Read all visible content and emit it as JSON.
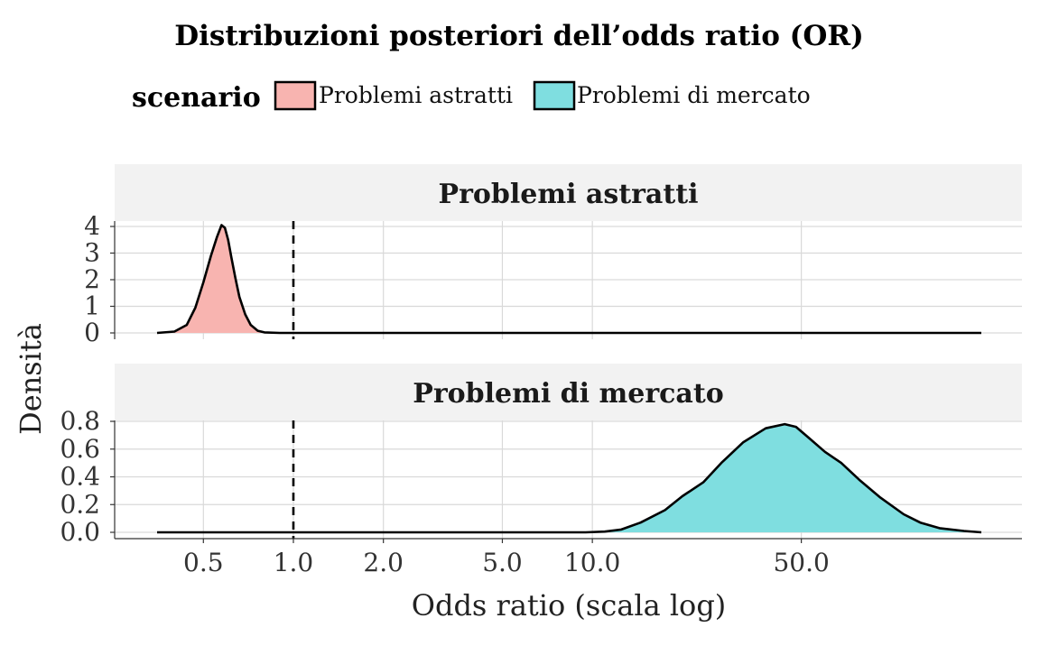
{
  "chart_data": {
    "type": "area",
    "title": "Distribuzioni posteriori dell’odds ratio (OR)",
    "xlabel": "Odds ratio (scala log)",
    "ylabel": "Densità",
    "x_scale": "log",
    "xlim": [
      0.35,
      200
    ],
    "x_ticks": [
      {
        "value": 0.5,
        "label": "0.5"
      },
      {
        "value": 1.0,
        "label": "1.0"
      },
      {
        "value": 2.0,
        "label": "2.0"
      },
      {
        "value": 5.0,
        "label": "5.0"
      },
      {
        "value": 10.0,
        "label": "10.0"
      },
      {
        "value": 50.0,
        "label": "50.0"
      }
    ],
    "reference_line": {
      "x": 1.0,
      "style": "dashed"
    },
    "grid": true,
    "legend": {
      "title": "scenario",
      "position": "top",
      "entries": [
        {
          "label": "Problemi astratti",
          "color": "#F8B4B0"
        },
        {
          "label": "Problemi di mercato",
          "color": "#7FDEE0"
        }
      ]
    },
    "panels": [
      {
        "strip_label": "Problemi astratti",
        "fill_color": "#F8B4B0",
        "ylim": [
          0,
          4.2
        ],
        "y_ticks": [
          {
            "value": 0,
            "label": "0"
          },
          {
            "value": 1,
            "label": "1"
          },
          {
            "value": 2,
            "label": "2"
          },
          {
            "value": 3,
            "label": "3"
          },
          {
            "value": 4,
            "label": "4"
          }
        ],
        "x": [
          0.35,
          0.4,
          0.44,
          0.47,
          0.5,
          0.53,
          0.555,
          0.575,
          0.59,
          0.605,
          0.62,
          0.64,
          0.66,
          0.69,
          0.72,
          0.76,
          0.8,
          0.9,
          1.0,
          2.0,
          5.0,
          10.0,
          50.0,
          100.0,
          200.0
        ],
        "density": [
          0.0,
          0.05,
          0.3,
          0.95,
          1.9,
          2.9,
          3.6,
          4.05,
          3.95,
          3.5,
          2.85,
          2.05,
          1.35,
          0.7,
          0.3,
          0.08,
          0.02,
          0.0,
          0.0,
          0.0,
          0.0,
          0.0,
          0.0,
          0.0,
          0.0
        ]
      },
      {
        "strip_label": "Problemi di mercato",
        "fill_color": "#7FDEE0",
        "ylim": [
          0,
          0.85
        ],
        "y_ticks": [
          {
            "value": 0.0,
            "label": "0.0"
          },
          {
            "value": 0.2,
            "label": "0.2"
          },
          {
            "value": 0.4,
            "label": "0.4"
          },
          {
            "value": 0.6,
            "label": "0.6"
          },
          {
            "value": 0.8,
            "label": "0.8"
          }
        ],
        "x": [
          0.35,
          1.0,
          5.0,
          9.5,
          11.0,
          12.5,
          14.5,
          17.5,
          20.0,
          23.5,
          27.0,
          32.0,
          38.0,
          44.0,
          48.0,
          53.0,
          60.0,
          68.0,
          78.0,
          92.0,
          110.0,
          125.0,
          145.0,
          175.0,
          200.0
        ],
        "density": [
          0.0,
          0.0,
          0.0,
          0.0,
          0.005,
          0.02,
          0.07,
          0.16,
          0.26,
          0.36,
          0.5,
          0.65,
          0.75,
          0.78,
          0.76,
          0.68,
          0.58,
          0.5,
          0.38,
          0.25,
          0.13,
          0.07,
          0.03,
          0.01,
          0.0
        ]
      }
    ]
  }
}
